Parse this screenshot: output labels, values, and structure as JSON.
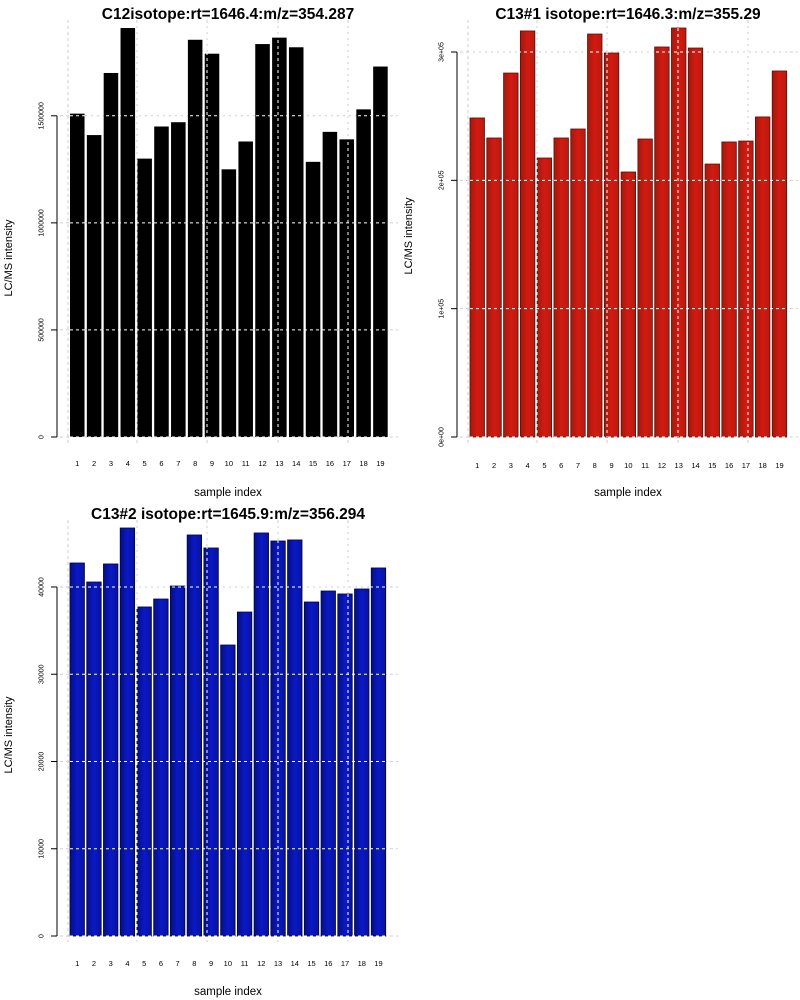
{
  "chart_data": [
    {
      "type": "bar",
      "title": "C12isotope:rt=1646.4:m/z=354.287",
      "xlabel": "sample index",
      "ylabel": "LC/MS intensity",
      "categories": [
        "1",
        "2",
        "3",
        "4",
        "5",
        "6",
        "7",
        "8",
        "9",
        "10",
        "11",
        "12",
        "13",
        "14",
        "15",
        "16",
        "17",
        "18",
        "19"
      ],
      "values": [
        1510000,
        1410000,
        1700000,
        1910000,
        1300000,
        1450000,
        1470000,
        1855000,
        1790000,
        1250000,
        1380000,
        1835000,
        1865000,
        1820000,
        1285000,
        1425000,
        1390000,
        1530000,
        1730000
      ],
      "ylim": [
        0,
        1910000
      ],
      "yticks": [
        0,
        500000,
        1000000,
        1500000
      ],
      "ytick_labels": [
        "0",
        "500000",
        "1000000",
        "1500000"
      ],
      "grid": true,
      "color": "#000000",
      "color_dark": "#000000"
    },
    {
      "type": "bar",
      "title": "C13#1 isotope:rt=1646.3:m/z=355.29",
      "xlabel": "sample index",
      "ylabel": "LC/MS intensity",
      "categories": [
        "1",
        "2",
        "3",
        "4",
        "5",
        "6",
        "7",
        "8",
        "9",
        "10",
        "11",
        "12",
        "13",
        "14",
        "15",
        "16",
        "17",
        "18",
        "19"
      ],
      "values": [
        248600,
        233000,
        283600,
        316400,
        217400,
        233000,
        240000,
        314000,
        299200,
        206500,
        232200,
        303900,
        318700,
        303100,
        212700,
        229900,
        230600,
        249400,
        285200
      ],
      "ylim": [
        0,
        318700
      ],
      "yticks": [
        0,
        100000,
        200000,
        300000
      ],
      "ytick_labels": [
        "0e+00",
        "1e+05",
        "2e+05",
        "3e+05"
      ],
      "grid": true,
      "color": "#d41a10",
      "color_dark": "#9a1c10"
    },
    {
      "type": "bar",
      "title": "C13#2 isotope:rt=1645.9:m/z=356.294",
      "xlabel": "sample index",
      "ylabel": "LC/MS intensity",
      "categories": [
        "1",
        "2",
        "3",
        "4",
        "5",
        "6",
        "7",
        "8",
        "9",
        "10",
        "11",
        "12",
        "13",
        "14",
        "15",
        "16",
        "17",
        "18",
        "19"
      ],
      "values": [
        42750,
        40570,
        42640,
        46760,
        37710,
        38620,
        40110,
        45960,
        44470,
        33350,
        37130,
        46190,
        45270,
        45390,
        38280,
        39540,
        39200,
        39770,
        42180
      ],
      "ylim": [
        0,
        46760
      ],
      "yticks": [
        0,
        10000,
        20000,
        30000,
        40000
      ],
      "ytick_labels": [
        "0",
        "10000",
        "20000",
        "30000",
        "40000"
      ],
      "grid": true,
      "color": "#0a18c8",
      "color_dark": "#061078"
    }
  ]
}
